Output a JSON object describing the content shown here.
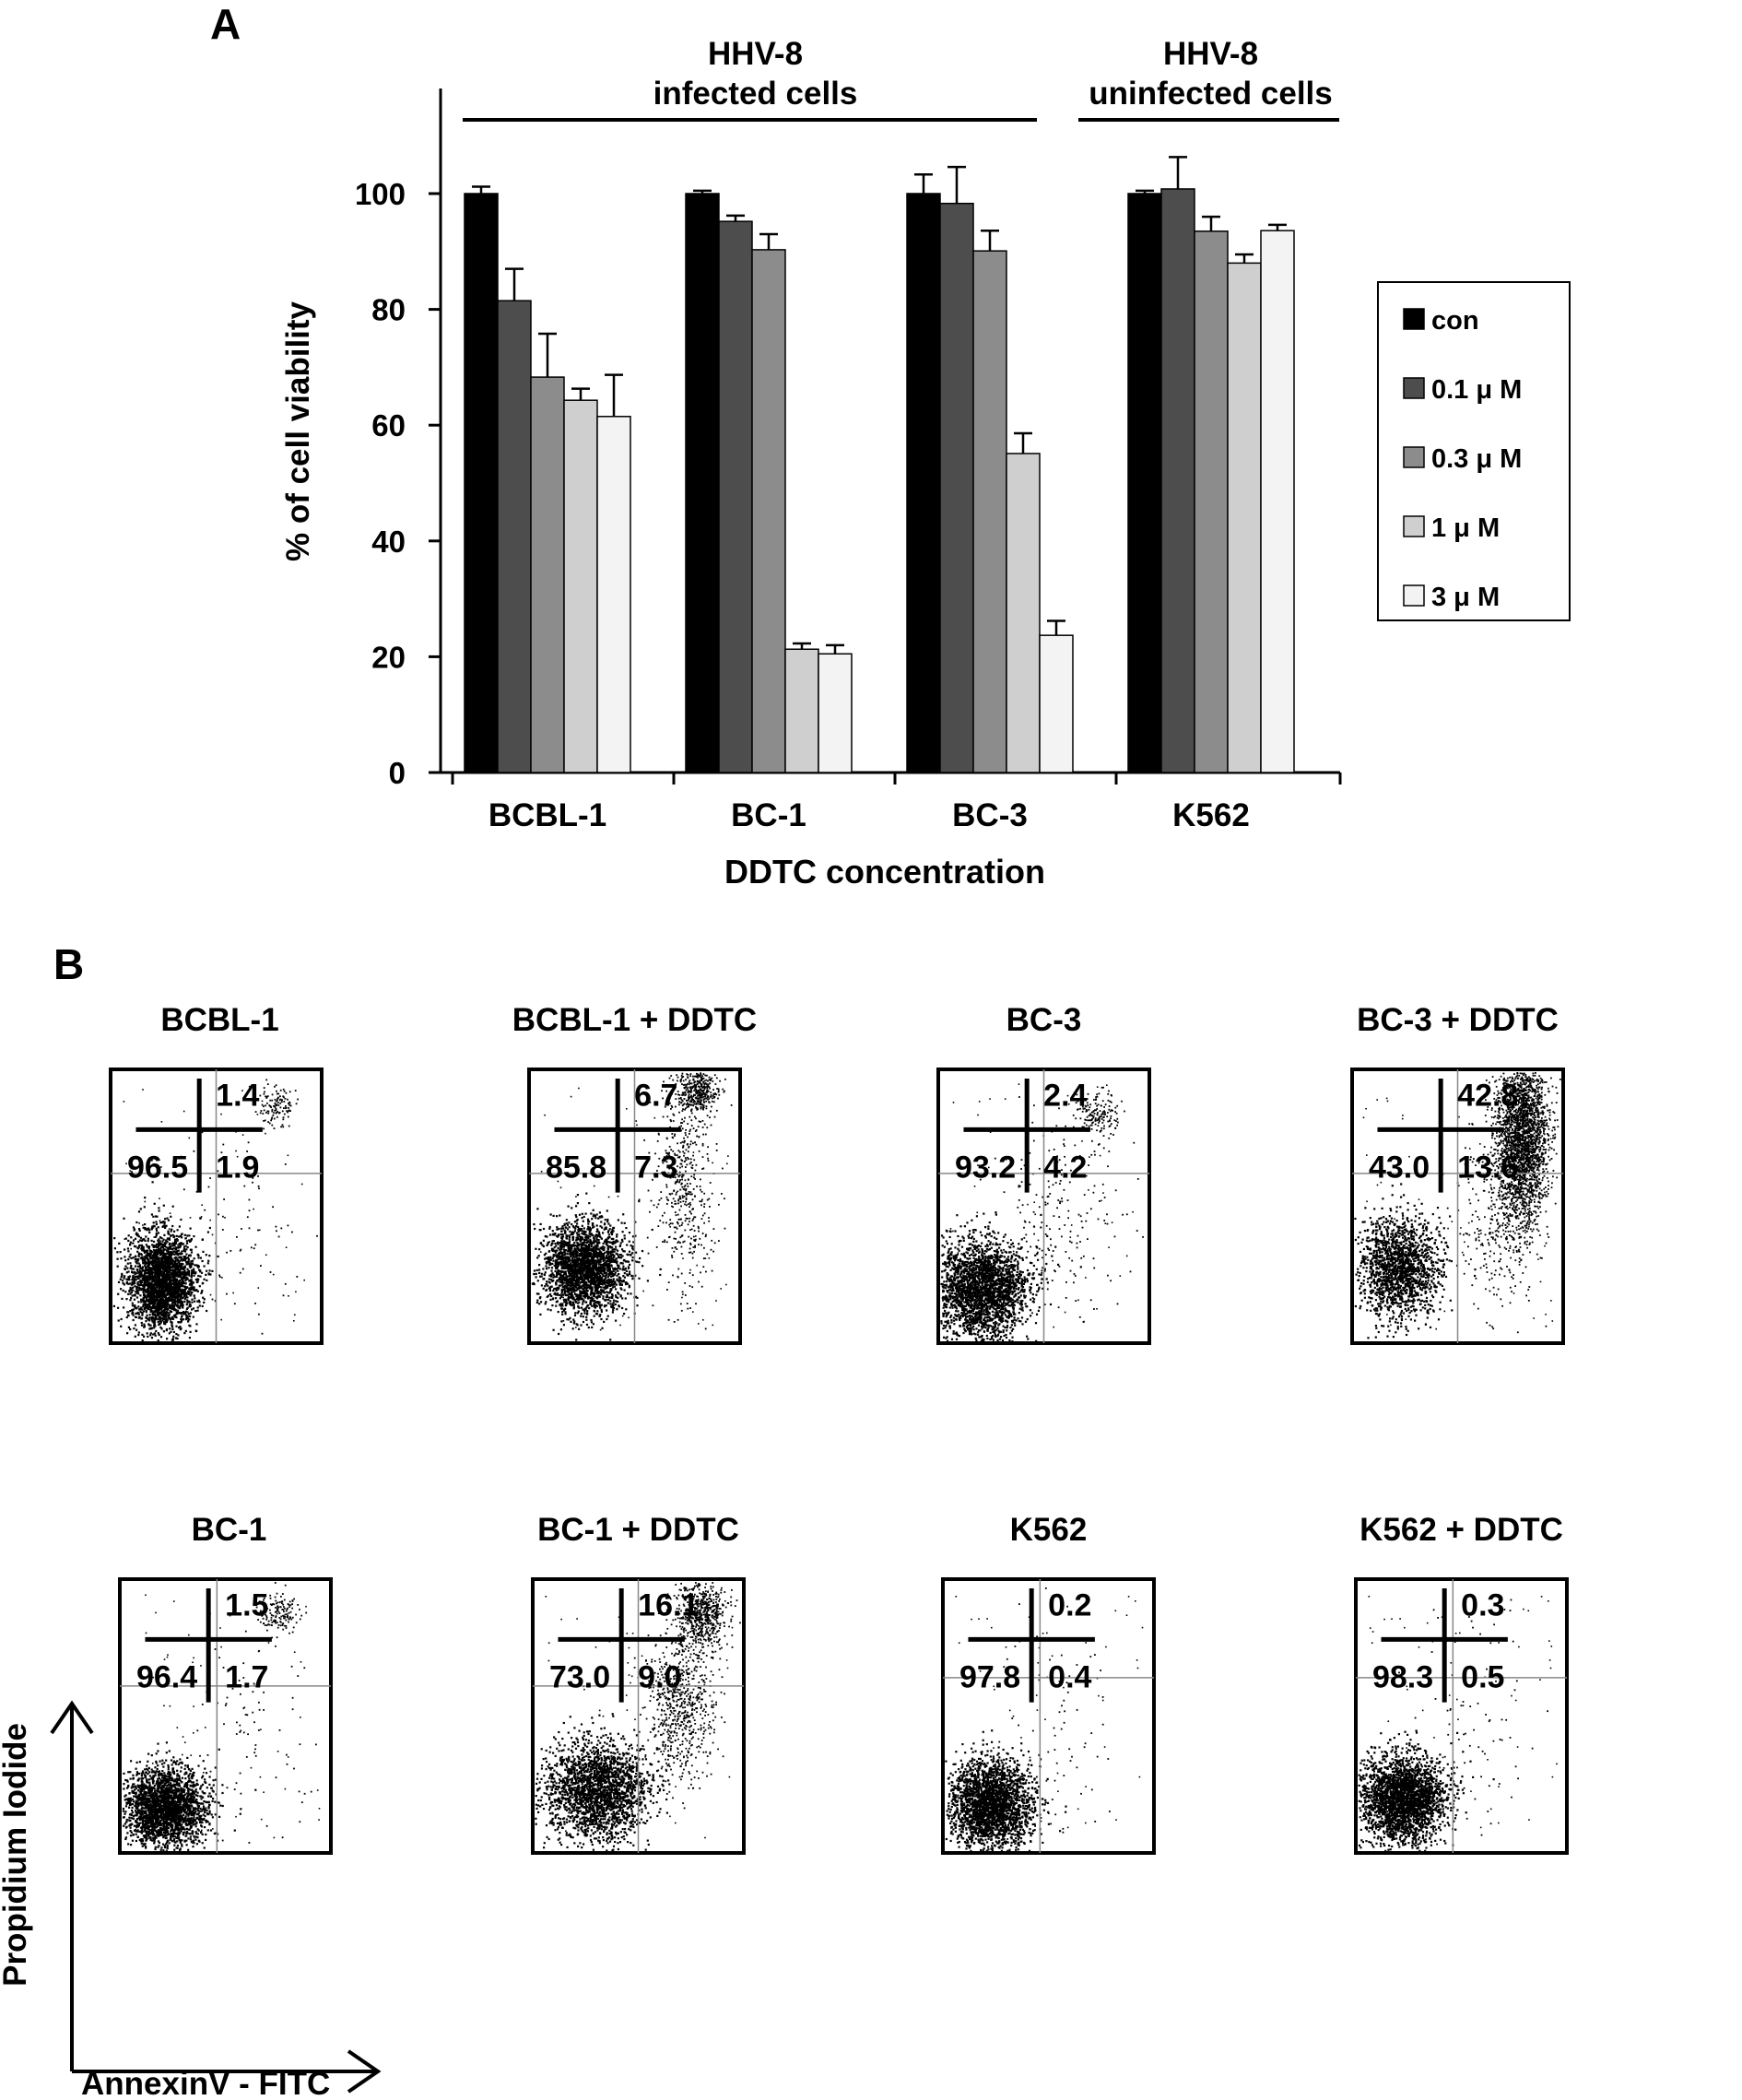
{
  "panel_a_label": "A",
  "panel_b_label": "B",
  "chart_data": [
    {
      "type": "bar",
      "ylabel": "% of cell viability",
      "xlabel": "DDTC concentration",
      "ylim": [
        0,
        100
      ],
      "yticks": [
        0,
        20,
        40,
        60,
        80,
        100
      ],
      "grid": false,
      "legend_position": "right",
      "categories": [
        "BCBL-1",
        "BC-1",
        "BC-3",
        "K562"
      ],
      "groups": [
        {
          "label": "HHV-8\ninfected cells",
          "categories": [
            "BCBL-1",
            "BC-1",
            "BC-3"
          ]
        },
        {
          "label": "HHV-8\nuninfected cells",
          "categories": [
            "K562"
          ]
        }
      ],
      "series": [
        {
          "name": "con",
          "color": "#000000",
          "values": [
            100,
            100,
            100,
            100
          ],
          "errors": [
            1.2,
            0.5,
            3.3,
            0.5
          ]
        },
        {
          "name": "0.1 μ M",
          "color": "#4d4d4d",
          "values": [
            81.5,
            95.2,
            98.3,
            100.8
          ],
          "errors": [
            5.5,
            1.0,
            6.3,
            5.5
          ]
        },
        {
          "name": "0.3 μ M",
          "color": "#8c8c8c",
          "values": [
            68.3,
            90.3,
            90.1,
            93.5
          ],
          "errors": [
            7.5,
            2.7,
            3.5,
            2.5
          ]
        },
        {
          "name": "1 μ M",
          "color": "#cfcfcf",
          "values": [
            64.3,
            21.3,
            55.1,
            88.0
          ],
          "errors": [
            2.0,
            1.0,
            3.5,
            1.5
          ]
        },
        {
          "name": "3 μ M",
          "color": "#f3f3f3",
          "values": [
            61.5,
            20.5,
            23.7,
            93.6
          ],
          "errors": [
            7.2,
            1.5,
            2.5,
            1.0
          ]
        }
      ]
    },
    {
      "type": "scatter",
      "xlabel": "AnnexinV - FITC",
      "ylabel": "Propidium Iodide",
      "panels": [
        {
          "title": "BCBL-1",
          "upper_right": "1.4",
          "lower_left": "96.5",
          "lower_right": "1.9"
        },
        {
          "title": "BCBL-1 + DDTC",
          "upper_right": "6.7",
          "lower_left": "85.8",
          "lower_right": "7.3"
        },
        {
          "title": "BC-3",
          "upper_right": "2.4",
          "lower_left": "93.2",
          "lower_right": "4.2"
        },
        {
          "title": "BC-3 + DDTC",
          "upper_right": "42.8",
          "lower_left": "43.0",
          "lower_right": "13.6"
        },
        {
          "title": "BC-1",
          "upper_right": "1.5",
          "lower_left": "96.4",
          "lower_right": "1.7"
        },
        {
          "title": "BC-1 + DDTC",
          "upper_right": "16.1",
          "lower_left": "73.0",
          "lower_right": "9.0"
        },
        {
          "title": "K562",
          "upper_right": "0.2",
          "lower_left": "97.8",
          "lower_right": "0.4"
        },
        {
          "title": "K562 + DDTC",
          "upper_right": "0.3",
          "lower_left": "98.3",
          "lower_right": "0.5"
        }
      ]
    }
  ]
}
